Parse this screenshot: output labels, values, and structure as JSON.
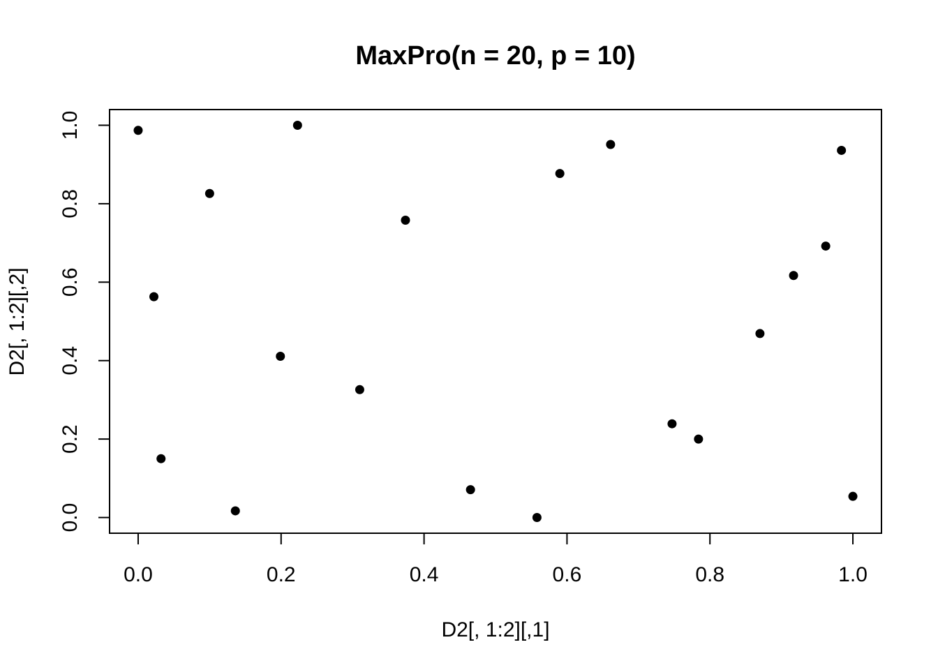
{
  "chart_data": {
    "type": "scatter",
    "title": "MaxPro(n = 20, p = 10)",
    "xlabel": "D2[, 1:2][,1]",
    "ylabel": "D2[, 1:2][,2]",
    "xlim": [
      -0.04,
      1.04
    ],
    "ylim": [
      -0.04,
      1.04
    ],
    "xticks": [
      "0.0",
      "0.2",
      "0.4",
      "0.6",
      "0.8",
      "1.0"
    ],
    "yticks": [
      "0.0",
      "0.2",
      "0.4",
      "0.6",
      "0.8",
      "1.0"
    ],
    "grid": false,
    "point_color": "#000000",
    "x": [
      0.0,
      0.022,
      0.032,
      0.1,
      0.136,
      0.199,
      0.223,
      0.31,
      0.374,
      0.465,
      0.558,
      0.59,
      0.661,
      0.747,
      0.784,
      0.87,
      0.917,
      0.962,
      0.984,
      1.0
    ],
    "y": [
      0.987,
      0.563,
      0.15,
      0.826,
      0.017,
      0.411,
      1.0,
      0.326,
      0.758,
      0.071,
      0.0,
      0.877,
      0.951,
      0.239,
      0.2,
      0.469,
      0.617,
      0.692,
      0.936,
      0.054
    ]
  }
}
